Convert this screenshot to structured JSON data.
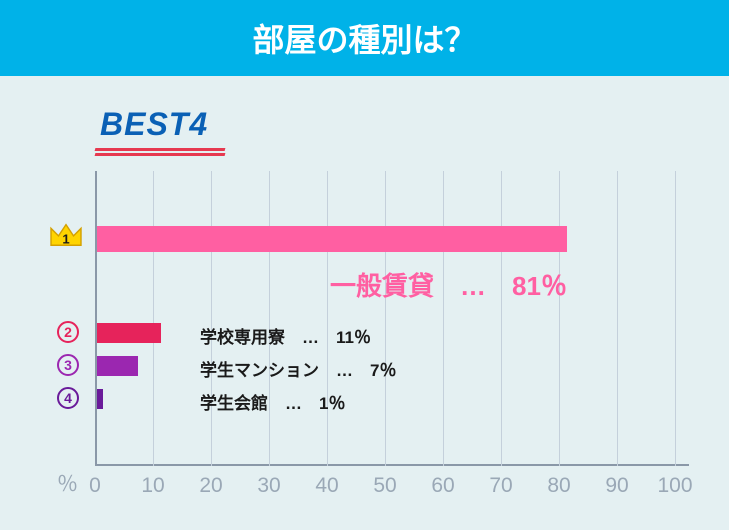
{
  "colors": {
    "header_bg": "#00b2e8",
    "header_text": "#ffffff",
    "chart_bg": "#e4f0f2",
    "best_text": "#0a60b5",
    "axis": "#8a98a8",
    "grid": "#c4d0db",
    "tick": "#9aa8b6",
    "bar1": "#ff5fa2",
    "bar2": "#e6235b",
    "bar3": "#9b27b0",
    "bar4": "#6a1b9a",
    "crown_fill": "#ffd400",
    "crown_stroke": "#d4a000",
    "legend_top": "#ff5fa2",
    "legend_text": "#1a1a1a"
  },
  "header": {
    "title": "部屋の種別は？",
    "fontsize": 32
  },
  "best_label": {
    "text": "BEST4",
    "fontsize": 32
  },
  "chart": {
    "xmax": 100,
    "tick_step": 10,
    "pct_symbol": "％",
    "bars": [
      {
        "rank": 1,
        "label": "一般賃貸",
        "value": 81,
        "color_key": "bar1",
        "is_top": true
      },
      {
        "rank": 2,
        "label": "学校専用寮",
        "value": 11,
        "color_key": "bar2",
        "is_top": false
      },
      {
        "rank": 3,
        "label": "学生マンション",
        "value": 7,
        "color_key": "bar3",
        "is_top": false
      },
      {
        "rank": 4,
        "label": "学生会館",
        "value": 1,
        "color_key": "bar4",
        "is_top": false
      }
    ],
    "top_legend_fontsize": 26,
    "legend_fontsize": 17
  }
}
